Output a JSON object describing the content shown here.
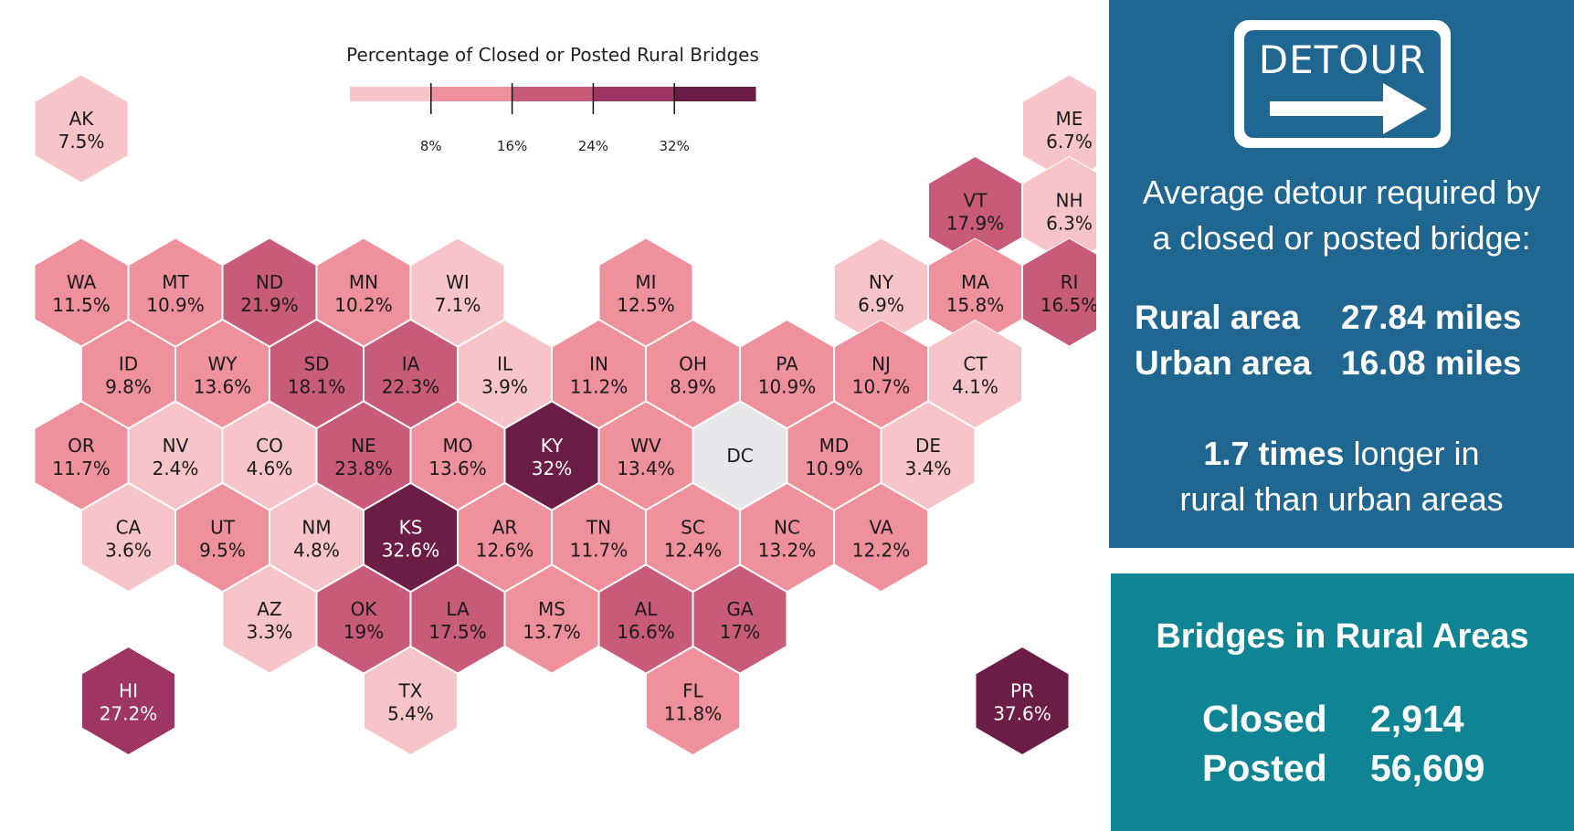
{
  "legend": {
    "title": "Percentage of Closed or Posted Rural Bridges",
    "ticks": [
      "8%",
      "16%",
      "24%",
      "32%"
    ],
    "colors": [
      "#f7c5c9",
      "#ee919c",
      "#c85a7a",
      "#9e3563",
      "#6b1d45"
    ]
  },
  "map": {
    "missing_color": "#e8e8ea",
    "states": [
      {
        "abbr": "AK",
        "value": "7.5%",
        "pct": 7.5
      },
      {
        "abbr": "ME",
        "value": "6.7%",
        "pct": 6.7
      },
      {
        "abbr": "VT",
        "value": "17.9%",
        "pct": 17.9
      },
      {
        "abbr": "NH",
        "value": "6.3%",
        "pct": 6.3
      },
      {
        "abbr": "WA",
        "value": "11.5%",
        "pct": 11.5
      },
      {
        "abbr": "MT",
        "value": "10.9%",
        "pct": 10.9
      },
      {
        "abbr": "ND",
        "value": "21.9%",
        "pct": 21.9
      },
      {
        "abbr": "MN",
        "value": "10.2%",
        "pct": 10.2
      },
      {
        "abbr": "WI",
        "value": "7.1%",
        "pct": 7.1
      },
      {
        "abbr": "MI",
        "value": "12.5%",
        "pct": 12.5
      },
      {
        "abbr": "NY",
        "value": "6.9%",
        "pct": 6.9
      },
      {
        "abbr": "MA",
        "value": "15.8%",
        "pct": 15.8
      },
      {
        "abbr": "RI",
        "value": "16.5%",
        "pct": 16.5
      },
      {
        "abbr": "ID",
        "value": "9.8%",
        "pct": 9.8
      },
      {
        "abbr": "WY",
        "value": "13.6%",
        "pct": 13.6
      },
      {
        "abbr": "SD",
        "value": "18.1%",
        "pct": 18.1
      },
      {
        "abbr": "IA",
        "value": "22.3%",
        "pct": 22.3
      },
      {
        "abbr": "IL",
        "value": "3.9%",
        "pct": 3.9
      },
      {
        "abbr": "IN",
        "value": "11.2%",
        "pct": 11.2
      },
      {
        "abbr": "OH",
        "value": "8.9%",
        "pct": 8.9
      },
      {
        "abbr": "PA",
        "value": "10.9%",
        "pct": 10.9
      },
      {
        "abbr": "NJ",
        "value": "10.7%",
        "pct": 10.7
      },
      {
        "abbr": "CT",
        "value": "4.1%",
        "pct": 4.1
      },
      {
        "abbr": "OR",
        "value": "11.7%",
        "pct": 11.7
      },
      {
        "abbr": "NV",
        "value": "2.4%",
        "pct": 2.4
      },
      {
        "abbr": "CO",
        "value": "4.6%",
        "pct": 4.6
      },
      {
        "abbr": "NE",
        "value": "23.8%",
        "pct": 23.8
      },
      {
        "abbr": "MO",
        "value": "13.6%",
        "pct": 13.6
      },
      {
        "abbr": "KY",
        "value": "32%",
        "pct": 32
      },
      {
        "abbr": "WV",
        "value": "13.4%",
        "pct": 13.4
      },
      {
        "abbr": "DC",
        "value": "",
        "pct": null
      },
      {
        "abbr": "MD",
        "value": "10.9%",
        "pct": 10.9
      },
      {
        "abbr": "DE",
        "value": "3.4%",
        "pct": 3.4
      },
      {
        "abbr": "CA",
        "value": "3.6%",
        "pct": 3.6
      },
      {
        "abbr": "UT",
        "value": "9.5%",
        "pct": 9.5
      },
      {
        "abbr": "NM",
        "value": "4.8%",
        "pct": 4.8
      },
      {
        "abbr": "KS",
        "value": "32.6%",
        "pct": 32.6
      },
      {
        "abbr": "AR",
        "value": "12.6%",
        "pct": 12.6
      },
      {
        "abbr": "TN",
        "value": "11.7%",
        "pct": 11.7
      },
      {
        "abbr": "SC",
        "value": "12.4%",
        "pct": 12.4
      },
      {
        "abbr": "NC",
        "value": "13.2%",
        "pct": 13.2
      },
      {
        "abbr": "VA",
        "value": "12.2%",
        "pct": 12.2
      },
      {
        "abbr": "AZ",
        "value": "3.3%",
        "pct": 3.3
      },
      {
        "abbr": "OK",
        "value": "19%",
        "pct": 19
      },
      {
        "abbr": "LA",
        "value": "17.5%",
        "pct": 17.5
      },
      {
        "abbr": "MS",
        "value": "13.7%",
        "pct": 13.7
      },
      {
        "abbr": "AL",
        "value": "16.6%",
        "pct": 16.6
      },
      {
        "abbr": "GA",
        "value": "17%",
        "pct": 17
      },
      {
        "abbr": "HI",
        "value": "27.2%",
        "pct": 27.2
      },
      {
        "abbr": "TX",
        "value": "5.4%",
        "pct": 5.4
      },
      {
        "abbr": "FL",
        "value": "11.8%",
        "pct": 11.8
      },
      {
        "abbr": "PR",
        "value": "37.6%",
        "pct": 37.6
      }
    ]
  },
  "detour": {
    "sign_text": "DETOUR",
    "heading_line1": "Average detour required by",
    "heading_line2": "a closed or posted bridge:",
    "rural_label": "Rural area",
    "rural_value": "27.84 miles",
    "urban_label": "Urban area",
    "urban_value": "16.08 miles",
    "ratio_bold": "1.7 times",
    "ratio_rest": " longer in",
    "ratio_line2": "rural than urban areas"
  },
  "rural_bridges": {
    "title": "Bridges in Rural Areas",
    "closed_label": "Closed",
    "closed_value": "2,914",
    "posted_label": "Posted",
    "posted_value": "56,609"
  }
}
